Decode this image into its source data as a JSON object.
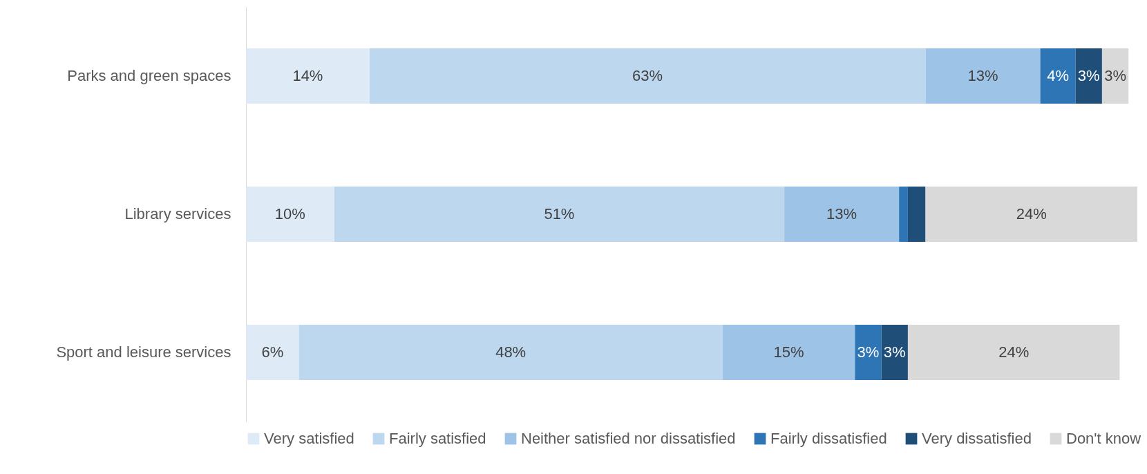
{
  "chart_data": {
    "type": "bar",
    "orientation": "horizontal",
    "stacked": true,
    "legend": "bottom",
    "categories": [
      "Parks and green spaces",
      "Library services",
      "Sport and leisure services"
    ],
    "series": [
      {
        "name": "Very satisfied",
        "color": "#deebf7",
        "values": [
          14,
          10,
          6
        ],
        "value_labels": [
          "14%",
          "10%",
          "6%"
        ]
      },
      {
        "name": "Fairly satisfied",
        "color": "#bdd7ee",
        "values": [
          63,
          51,
          48
        ],
        "value_labels": [
          "63%",
          "51%",
          "48%"
        ]
      },
      {
        "name": "Neither satisfied nor dissatisfied",
        "color": "#9dc3e6",
        "values": [
          13,
          13,
          15
        ],
        "value_labels": [
          "13%",
          "13%",
          "15%"
        ]
      },
      {
        "name": "Fairly dissatisfied",
        "color": "#2e75b6",
        "values": [
          4,
          1,
          3
        ],
        "value_labels": [
          "4%",
          null,
          "3%"
        ]
      },
      {
        "name": "Very dissatisfied",
        "color": "#1f4e79",
        "values": [
          3,
          2,
          3
        ],
        "value_labels": [
          "3%",
          null,
          "3%"
        ]
      },
      {
        "name": "Don't know",
        "color": "#d9d9d9",
        "values": [
          3,
          24,
          24
        ],
        "value_labels": [
          "3%",
          "24%",
          "24%"
        ]
      }
    ]
  }
}
